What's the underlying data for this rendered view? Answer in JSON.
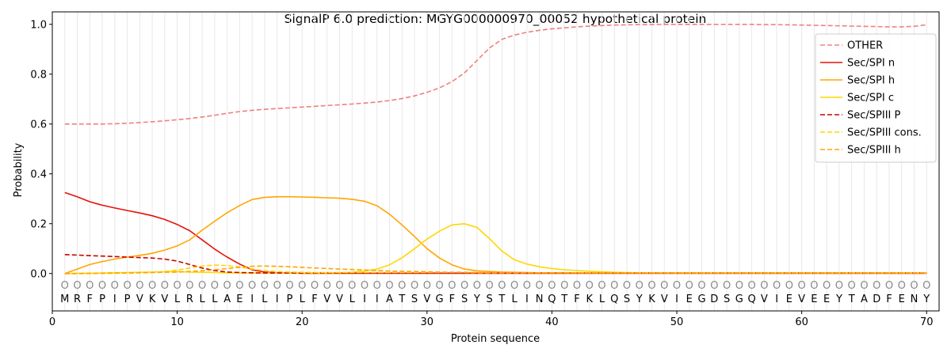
{
  "chart_data": {
    "type": "line",
    "title": "SignalP 6.0 prediction: MGYG000000970_00052 hypothetical protein",
    "xlabel": "Protein sequence",
    "ylabel": "Probability",
    "xlim": [
      0,
      71
    ],
    "ylim": [
      -0.15,
      1.05
    ],
    "xticks": [
      0,
      10,
      20,
      30,
      40,
      50,
      60,
      70
    ],
    "yticks": [
      0.0,
      0.2,
      0.4,
      0.6,
      0.8,
      1.0
    ],
    "grid": "vertical lines at each residue",
    "legend_position": "top-right",
    "sequence": [
      "M",
      "R",
      "F",
      "P",
      "I",
      "P",
      "V",
      "K",
      "V",
      "L",
      "R",
      "L",
      "L",
      "A",
      "E",
      "I",
      "L",
      "I",
      "P",
      "L",
      "F",
      "V",
      "V",
      "L",
      "I",
      "I",
      "A",
      "T",
      "S",
      "V",
      "G",
      "F",
      "S",
      "Y",
      "S",
      "T",
      "L",
      "I",
      "N",
      "Q",
      "T",
      "F",
      "K",
      "L",
      "Q",
      "S",
      "Y",
      "K",
      "V",
      "I",
      "E",
      "G",
      "D",
      "S",
      "G",
      "Q",
      "V",
      "I",
      "E",
      "V",
      "E",
      "E",
      "Y",
      "T",
      "A",
      "D",
      "F",
      "E",
      "N",
      "Y"
    ],
    "residue_marker": "O",
    "x": [
      1,
      2,
      3,
      4,
      5,
      6,
      7,
      8,
      9,
      10,
      11,
      12,
      13,
      14,
      15,
      16,
      17,
      18,
      19,
      20,
      21,
      22,
      23,
      24,
      25,
      26,
      27,
      28,
      29,
      30,
      31,
      32,
      33,
      34,
      35,
      36,
      37,
      38,
      39,
      40,
      41,
      42,
      43,
      44,
      45,
      46,
      47,
      48,
      49,
      50,
      51,
      52,
      53,
      54,
      55,
      56,
      57,
      58,
      59,
      60,
      61,
      62,
      63,
      64,
      65,
      66,
      67,
      68,
      69,
      70
    ],
    "series": [
      {
        "name": "OTHER",
        "color": "#f08080",
        "style": "dashed",
        "values": [
          0.6,
          0.6,
          0.6,
          0.6,
          0.601,
          0.603,
          0.606,
          0.609,
          0.613,
          0.617,
          0.622,
          0.628,
          0.635,
          0.643,
          0.65,
          0.655,
          0.659,
          0.662,
          0.665,
          0.668,
          0.671,
          0.674,
          0.677,
          0.68,
          0.684,
          0.688,
          0.694,
          0.702,
          0.713,
          0.727,
          0.745,
          0.77,
          0.805,
          0.855,
          0.905,
          0.94,
          0.957,
          0.968,
          0.976,
          0.982,
          0.986,
          0.99,
          0.993,
          0.995,
          0.997,
          0.998,
          0.999,
          0.999,
          1.0,
          1.0,
          1.0,
          1.0,
          1.0,
          1.0,
          1.0,
          1.0,
          0.999,
          0.999,
          0.998,
          0.997,
          0.996,
          0.995,
          0.994,
          0.993,
          0.992,
          0.991,
          0.99,
          0.99,
          0.992,
          0.998
        ]
      },
      {
        "name": "Sec/SPI n",
        "color": "#e8100a",
        "style": "solid",
        "values": [
          0.325,
          0.308,
          0.288,
          0.274,
          0.263,
          0.253,
          0.243,
          0.232,
          0.217,
          0.197,
          0.172,
          0.135,
          0.098,
          0.066,
          0.038,
          0.015,
          0.006,
          0.003,
          0.002,
          0.001,
          0.001,
          0.001,
          0.001,
          0.001,
          0.001,
          0.001,
          0.001,
          0.001,
          0.001,
          0.001,
          0.001,
          0.001,
          0.001,
          0.001,
          0.001,
          0.001,
          0.001,
          0.001,
          0.001,
          0.001,
          0.001,
          0.001,
          0.001,
          0.001,
          0.001,
          0.001,
          0.001,
          0.001,
          0.001,
          0.001,
          0.001,
          0.001,
          0.001,
          0.001,
          0.001,
          0.001,
          0.001,
          0.001,
          0.001,
          0.001,
          0.001,
          0.001,
          0.001,
          0.001,
          0.001,
          0.001,
          0.001,
          0.001,
          0.001,
          0.001
        ]
      },
      {
        "name": "Sec/SPI h",
        "color": "#ffa500",
        "style": "solid",
        "values": [
          0.0,
          0.018,
          0.036,
          0.048,
          0.058,
          0.066,
          0.073,
          0.081,
          0.094,
          0.111,
          0.135,
          0.174,
          0.21,
          0.244,
          0.273,
          0.297,
          0.306,
          0.308,
          0.308,
          0.307,
          0.306,
          0.304,
          0.302,
          0.298,
          0.29,
          0.272,
          0.238,
          0.195,
          0.148,
          0.1,
          0.062,
          0.035,
          0.018,
          0.011,
          0.008,
          0.006,
          0.005,
          0.004,
          0.003,
          0.003,
          0.003,
          0.002,
          0.002,
          0.002,
          0.002,
          0.002,
          0.002,
          0.002,
          0.002,
          0.002,
          0.002,
          0.002,
          0.002,
          0.002,
          0.002,
          0.002,
          0.002,
          0.002,
          0.002,
          0.002,
          0.002,
          0.002,
          0.002,
          0.002,
          0.002,
          0.002,
          0.002,
          0.002,
          0.002,
          0.002
        ]
      },
      {
        "name": "Sec/SPI c",
        "color": "#ffd700",
        "style": "solid",
        "values": [
          0.0,
          0.001,
          0.001,
          0.002,
          0.003,
          0.004,
          0.005,
          0.006,
          0.007,
          0.008,
          0.006,
          0.005,
          0.004,
          0.003,
          0.002,
          0.002,
          0.002,
          0.002,
          0.002,
          0.002,
          0.002,
          0.002,
          0.003,
          0.005,
          0.01,
          0.018,
          0.035,
          0.063,
          0.1,
          0.138,
          0.17,
          0.195,
          0.2,
          0.185,
          0.14,
          0.09,
          0.055,
          0.038,
          0.027,
          0.02,
          0.015,
          0.012,
          0.009,
          0.007,
          0.005,
          0.004,
          0.003,
          0.003,
          0.002,
          0.002,
          0.002,
          0.002,
          0.002,
          0.002,
          0.002,
          0.002,
          0.002,
          0.002,
          0.002,
          0.002,
          0.002,
          0.002,
          0.002,
          0.002,
          0.002,
          0.002,
          0.002,
          0.002,
          0.002,
          0.002
        ]
      },
      {
        "name": "Sec/SPIII P",
        "color": "#cc0000",
        "style": "dashed",
        "values": [
          0.076,
          0.074,
          0.072,
          0.07,
          0.068,
          0.066,
          0.064,
          0.062,
          0.058,
          0.05,
          0.036,
          0.022,
          0.012,
          0.006,
          0.004,
          0.003,
          0.002,
          0.002,
          0.002,
          0.002,
          0.002,
          0.002,
          0.002,
          0.002,
          0.002,
          0.002,
          0.002,
          0.002,
          0.002,
          0.002,
          0.002,
          0.002,
          0.002,
          0.002,
          0.002,
          0.002,
          0.002,
          0.002,
          0.002,
          0.002,
          0.002,
          0.002,
          0.002,
          0.002,
          0.002,
          0.002,
          0.002,
          0.002,
          0.002,
          0.002,
          0.002,
          0.002,
          0.002,
          0.002,
          0.002,
          0.002,
          0.002,
          0.002,
          0.002,
          0.002,
          0.002,
          0.002,
          0.002,
          0.002,
          0.002,
          0.002,
          0.002,
          0.002,
          0.002,
          0.002
        ]
      },
      {
        "name": "Sec/SPIII cons.",
        "color": "#ffd700",
        "style": "dashed",
        "values": [
          0.0,
          0.0,
          0.0,
          0.001,
          0.001,
          0.002,
          0.003,
          0.005,
          0.008,
          0.014,
          0.022,
          0.03,
          0.034,
          0.032,
          0.026,
          0.018,
          0.012,
          0.008,
          0.006,
          0.005,
          0.004,
          0.004,
          0.004,
          0.004,
          0.004,
          0.004,
          0.004,
          0.004,
          0.004,
          0.004,
          0.004,
          0.004,
          0.004,
          0.003,
          0.003,
          0.003,
          0.003,
          0.003,
          0.003,
          0.003,
          0.003,
          0.003,
          0.003,
          0.003,
          0.003,
          0.003,
          0.003,
          0.003,
          0.003,
          0.003,
          0.003,
          0.003,
          0.003,
          0.003,
          0.003,
          0.003,
          0.003,
          0.003,
          0.003,
          0.003,
          0.003,
          0.003,
          0.003,
          0.003,
          0.003,
          0.003,
          0.003,
          0.003,
          0.003,
          0.003
        ]
      },
      {
        "name": "Sec/SPIII h",
        "color": "#ffa500",
        "style": "dashed",
        "values": [
          0.0,
          0.0,
          0.001,
          0.001,
          0.002,
          0.002,
          0.003,
          0.004,
          0.005,
          0.006,
          0.008,
          0.011,
          0.015,
          0.02,
          0.025,
          0.029,
          0.03,
          0.029,
          0.027,
          0.025,
          0.022,
          0.02,
          0.018,
          0.016,
          0.014,
          0.012,
          0.01,
          0.009,
          0.008,
          0.007,
          0.006,
          0.005,
          0.005,
          0.004,
          0.004,
          0.004,
          0.003,
          0.003,
          0.003,
          0.003,
          0.003,
          0.003,
          0.003,
          0.003,
          0.003,
          0.003,
          0.003,
          0.003,
          0.003,
          0.003,
          0.003,
          0.003,
          0.003,
          0.003,
          0.003,
          0.003,
          0.003,
          0.003,
          0.003,
          0.003,
          0.003,
          0.003,
          0.003,
          0.003,
          0.003,
          0.003,
          0.003,
          0.003,
          0.003,
          0.003
        ]
      }
    ]
  }
}
